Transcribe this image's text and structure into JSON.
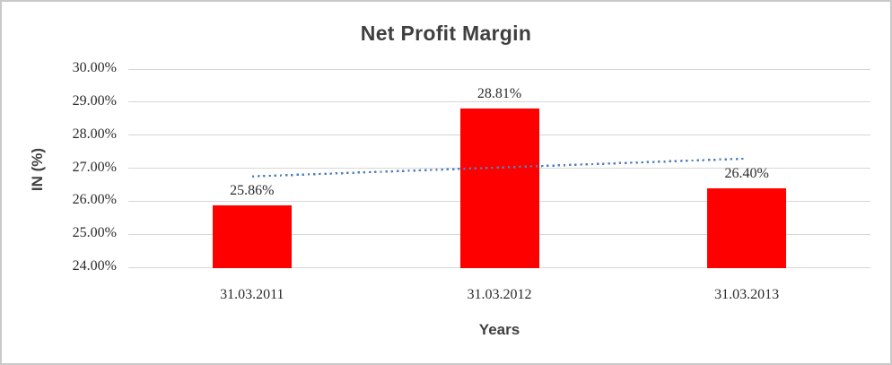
{
  "chart_data": {
    "type": "bar",
    "title": "Net Profit Margin",
    "xlabel": "Years",
    "ylabel": "IN (%)",
    "categories": [
      "31.03.2011",
      "31.03.2012",
      "31.03.2013"
    ],
    "values": [
      25.86,
      28.81,
      26.4
    ],
    "data_labels": [
      "25.86%",
      "28.81%",
      "26.40%"
    ],
    "y_ticks": [
      {
        "value": 30,
        "label": "30.00%"
      },
      {
        "value": 29,
        "label": "29.00%"
      },
      {
        "value": 28,
        "label": "28.00%"
      },
      {
        "value": 27,
        "label": "27.00%"
      },
      {
        "value": 26,
        "label": "26.00%"
      },
      {
        "value": 25,
        "label": "25.00%"
      },
      {
        "value": 24,
        "label": "24.00%"
      }
    ],
    "ylim": [
      24,
      30
    ],
    "grid": true,
    "legend": "none",
    "colors": {
      "bar": "#FF0000",
      "gridline": "#D6D6D6",
      "tick_text": "#2B2B2B",
      "title_text": "#3F3F3F",
      "trendline": "#4F81BD"
    },
    "trendline": {
      "style": "dotted",
      "color": "#4F81BD",
      "start_value": 26.75,
      "end_value": 27.29
    }
  }
}
